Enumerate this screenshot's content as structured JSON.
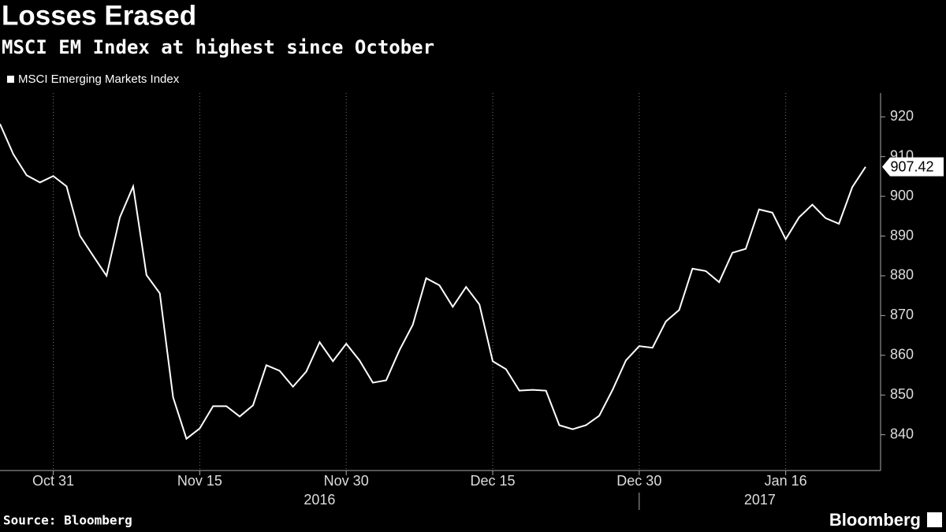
{
  "chart_data": {
    "type": "line",
    "title": "Losses Erased",
    "subtitle": "MSCI EM Index at highest since October",
    "source": "Source: Bloomberg",
    "brand": "Bloomberg",
    "categories": [
      null,
      null,
      null,
      null,
      "Oct 31",
      null,
      null,
      null,
      null,
      null,
      null,
      null,
      null,
      null,
      null,
      "Nov 15",
      null,
      null,
      null,
      null,
      null,
      null,
      null,
      null,
      null,
      null,
      "Nov 30",
      null,
      null,
      null,
      null,
      null,
      null,
      null,
      null,
      null,
      null,
      "Dec 15",
      null,
      null,
      null,
      null,
      null,
      null,
      null,
      null,
      null,
      null,
      "Dec 30",
      null,
      null,
      null,
      null,
      null,
      null,
      null,
      null,
      null,
      null,
      "Jan 16",
      null,
      null,
      null,
      null,
      null,
      null
    ],
    "year_labels": [
      "2016",
      "2017"
    ],
    "series": [
      {
        "name": "MSCI Emerging Markets Index",
        "color": "#ffffff",
        "values": [
          918.2,
          910.6,
          905.3,
          903.5,
          905.1,
          902.5,
          890.1,
          885.0,
          880.0,
          894.7,
          902.5,
          880.2,
          875.6,
          849.4,
          839.0,
          841.6,
          847.2,
          847.2,
          844.6,
          847.4,
          857.5,
          856.1,
          852.1,
          855.9,
          863.3,
          858.5,
          862.9,
          858.7,
          853.1,
          853.7,
          861.3,
          867.7,
          879.4,
          877.6,
          872.2,
          877.2,
          872.8,
          858.5,
          856.5,
          851.1,
          851.3,
          851.1,
          842.4,
          841.4,
          842.4,
          844.8,
          851.3,
          858.7,
          862.3,
          861.9,
          868.5,
          871.4,
          881.8,
          881.2,
          878.4,
          885.8,
          886.8,
          896.7,
          895.9,
          889.2,
          894.7,
          897.9,
          894.5,
          893.1,
          902.3,
          907.42
        ]
      }
    ],
    "ylim": [
      831,
      926
    ],
    "yticks": [
      840,
      850,
      860,
      870,
      880,
      890,
      900,
      910,
      920
    ],
    "grid": true
  }
}
